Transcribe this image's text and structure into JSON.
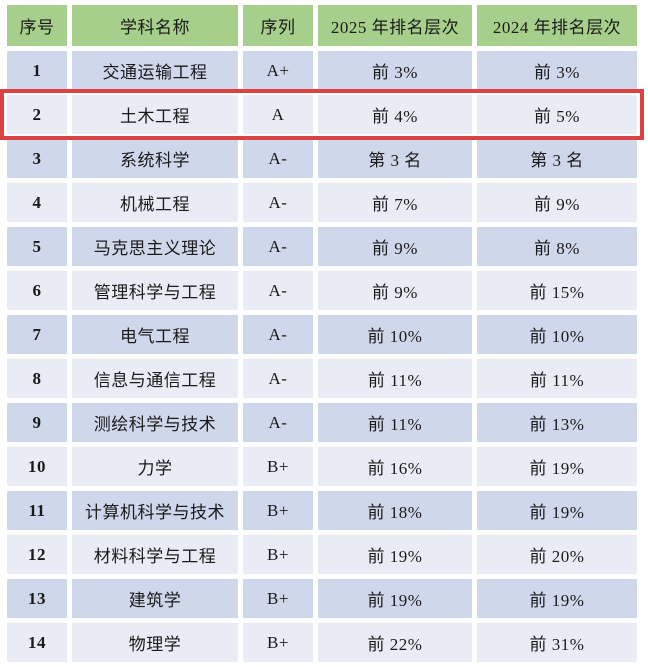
{
  "table": {
    "columns": [
      "序号",
      "学科名称",
      "序列",
      "2025 年排名层次",
      "2024 年排名层次"
    ],
    "rows": [
      {
        "no": "1",
        "subject": "交通运输工程",
        "grade": "A+",
        "rank_2025": "前 3%",
        "rank_2024": "前 3%"
      },
      {
        "no": "2",
        "subject": "土木工程",
        "grade": "A",
        "rank_2025": "前 4%",
        "rank_2024": "前 5%",
        "highlighted": true
      },
      {
        "no": "3",
        "subject": "系统科学",
        "grade": "A-",
        "rank_2025": "第 3 名",
        "rank_2024": "第 3 名"
      },
      {
        "no": "4",
        "subject": "机械工程",
        "grade": "A-",
        "rank_2025": "前 7%",
        "rank_2024": "前 9%"
      },
      {
        "no": "5",
        "subject": "马克思主义理论",
        "grade": "A-",
        "rank_2025": "前 9%",
        "rank_2024": "前 8%"
      },
      {
        "no": "6",
        "subject": "管理科学与工程",
        "grade": "A-",
        "rank_2025": "前 9%",
        "rank_2024": "前 15%"
      },
      {
        "no": "7",
        "subject": "电气工程",
        "grade": "A-",
        "rank_2025": "前 10%",
        "rank_2024": "前 10%"
      },
      {
        "no": "8",
        "subject": "信息与通信工程",
        "grade": "A-",
        "rank_2025": "前 11%",
        "rank_2024": "前 11%"
      },
      {
        "no": "9",
        "subject": "测绘科学与技术",
        "grade": "A-",
        "rank_2025": "前 11%",
        "rank_2024": "前 13%"
      },
      {
        "no": "10",
        "subject": "力学",
        "grade": "B+",
        "rank_2025": "前 16%",
        "rank_2024": "前 19%"
      },
      {
        "no": "11",
        "subject": "计算机科学与技术",
        "grade": "B+",
        "rank_2025": "前 18%",
        "rank_2024": "前 19%"
      },
      {
        "no": "12",
        "subject": "材料科学与工程",
        "grade": "B+",
        "rank_2025": "前 19%",
        "rank_2024": "前 20%"
      },
      {
        "no": "13",
        "subject": "建筑学",
        "grade": "B+",
        "rank_2025": "前 19%",
        "rank_2024": "前 19%"
      },
      {
        "no": "14",
        "subject": "物理学",
        "grade": "B+",
        "rank_2025": "前 22%",
        "rank_2024": "前 31%"
      }
    ]
  },
  "colors": {
    "header_bg": "#A6CF8C",
    "row_odd_bg": "#CFD8EA",
    "row_even_bg": "#E9ECF5",
    "highlight_border": "#DB4243",
    "text": "#1A1A1A"
  }
}
